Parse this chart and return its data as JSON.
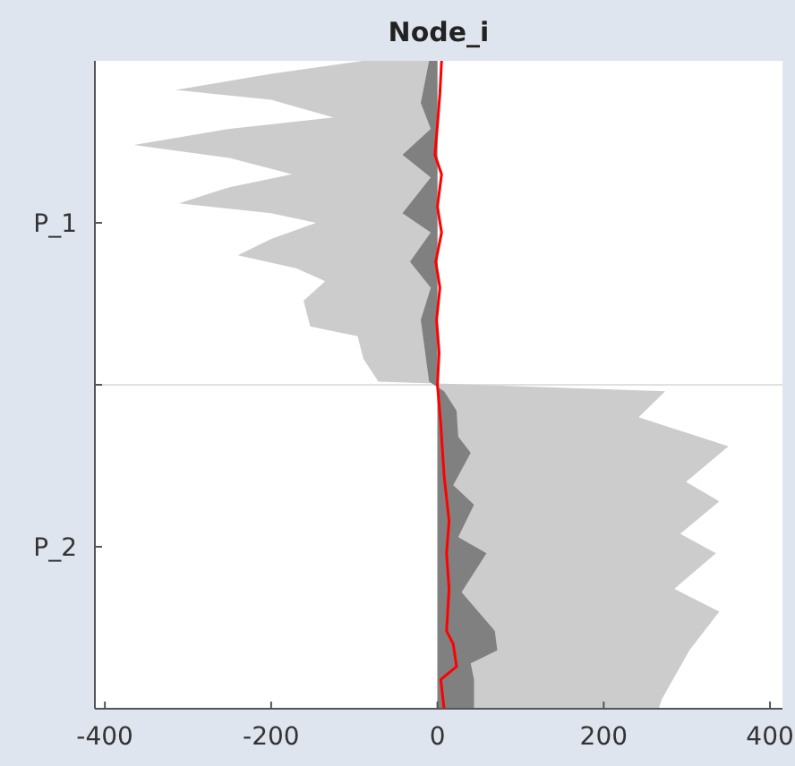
{
  "chart_data": {
    "type": "area",
    "title": "Node_i",
    "orientation": "horizontal",
    "xlim": [
      -412,
      415
    ],
    "xticks": [
      -400,
      -200,
      0,
      200,
      400
    ],
    "ylim": [
      2,
      0
    ],
    "yticks": [
      {
        "value": 0.5,
        "label": "P_1"
      },
      {
        "value": 1,
        "label": null
      },
      {
        "value": 1.5,
        "label": "P_2"
      }
    ],
    "ref_lines": [
      {
        "axis": "y",
        "value": 1,
        "color": "#e0e0e0"
      }
    ],
    "grid": false,
    "series": [
      {
        "color": "#cccccc",
        "x": [
          0,
          0.04,
          0.09,
          0.12,
          0.175,
          0.21,
          0.26,
          0.3,
          0.35,
          0.39,
          0.44,
          0.47,
          0.5,
          0.55,
          0.6,
          0.64,
          0.68,
          0.74,
          0.82,
          0.85,
          0.92,
          0.99,
          1.02,
          1.1,
          1.19,
          1.3,
          1.36,
          1.46,
          1.52,
          1.63,
          1.7,
          1.82,
          1.97,
          2
        ],
        "values": [
          -90,
          -200,
          -315,
          -200,
          -125,
          -250,
          -365,
          -250,
          -175,
          -250,
          -311,
          -200,
          -146,
          -200,
          -240,
          -170,
          -135,
          -161,
          -153,
          -96,
          -89,
          -71,
          274,
          242,
          350,
          299,
          339,
          292,
          335,
          285,
          339,
          303,
          270,
          266
        ]
      },
      {
        "color": "#808080",
        "x": [
          0,
          0.13,
          0.21,
          0.29,
          0.36,
          0.47,
          0.53,
          0.62,
          0.7,
          0.8,
          0.99,
          1.02,
          1.08,
          1.16,
          1.21,
          1.31,
          1.37,
          1.47,
          1.52,
          1.64,
          1.76,
          1.82,
          1.86,
          1.91,
          2
        ],
        "values": [
          -10,
          -20,
          -8,
          -42,
          -8,
          -42,
          -8,
          -33,
          -8,
          -20,
          -10,
          8,
          23,
          25,
          40,
          19,
          44,
          25,
          59,
          29,
          69,
          72,
          40,
          44,
          44
        ]
      },
      {
        "type": "line",
        "color": "#ff0000",
        "x": [
          0,
          0.1,
          0.2,
          0.29,
          0.35,
          0.45,
          0.53,
          0.62,
          0.7,
          0.8,
          0.9,
          1.0,
          1.12,
          1.28,
          1.42,
          1.52,
          1.63,
          1.76,
          1.8,
          1.87,
          1.91,
          2
        ],
        "values": [
          5,
          3,
          0,
          -3,
          5,
          0,
          5,
          -2,
          3,
          -1,
          2,
          0,
          4,
          8,
          14,
          11,
          14,
          11,
          19,
          23,
          4,
          8
        ]
      }
    ]
  }
}
